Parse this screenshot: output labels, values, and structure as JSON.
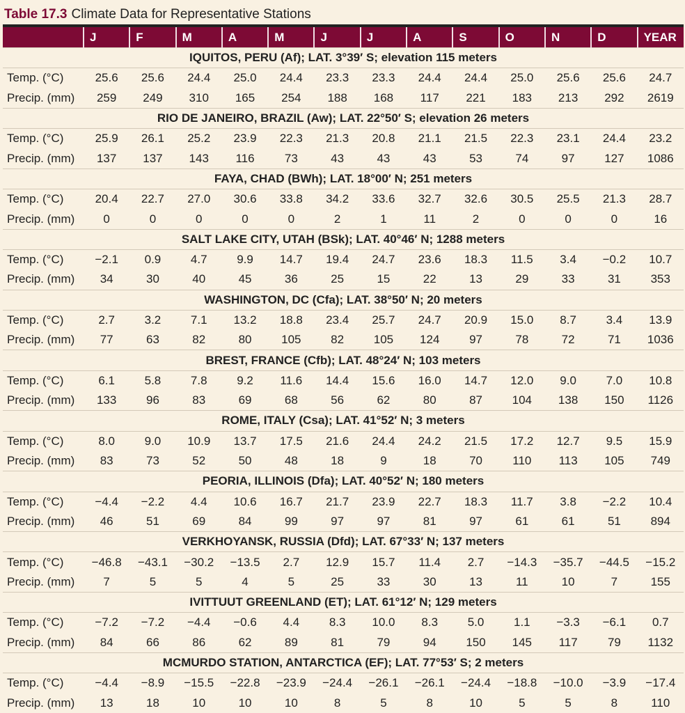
{
  "title": {
    "number": "Table 17.3",
    "text": "Climate Data for Representative Stations"
  },
  "columns": [
    "",
    "J",
    "F",
    "M",
    "A",
    "M",
    "J",
    "J",
    "A",
    "S",
    "O",
    "N",
    "D",
    "YEAR"
  ],
  "row_labels": {
    "temp": "Temp. (°C)",
    "precip": "Precip. (mm)"
  },
  "stations": [
    {
      "name": "IQUITOS, PERU (Af); LAT. 3°39′ S; elevation 115 meters",
      "temp": [
        "25.6",
        "25.6",
        "24.4",
        "25.0",
        "24.4",
        "23.3",
        "23.3",
        "24.4",
        "24.4",
        "25.0",
        "25.6",
        "25.6",
        "24.7"
      ],
      "precip": [
        "259",
        "249",
        "310",
        "165",
        "254",
        "188",
        "168",
        "117",
        "221",
        "183",
        "213",
        "292",
        "2619"
      ]
    },
    {
      "name": "RIO DE JANEIRO, BRAZIL (Aw); LAT. 22°50′ S; elevation 26 meters",
      "temp": [
        "25.9",
        "26.1",
        "25.2",
        "23.9",
        "22.3",
        "21.3",
        "20.8",
        "21.1",
        "21.5",
        "22.3",
        "23.1",
        "24.4",
        "23.2"
      ],
      "precip": [
        "137",
        "137",
        "143",
        "116",
        "73",
        "43",
        "43",
        "43",
        "53",
        "74",
        "97",
        "127",
        "1086"
      ]
    },
    {
      "name": "FAYA, CHAD (BWh); LAT. 18°00′ N; 251 meters",
      "temp": [
        "20.4",
        "22.7",
        "27.0",
        "30.6",
        "33.8",
        "34.2",
        "33.6",
        "32.7",
        "32.6",
        "30.5",
        "25.5",
        "21.3",
        "28.7"
      ],
      "precip": [
        "0",
        "0",
        "0",
        "0",
        "0",
        "2",
        "1",
        "11",
        "2",
        "0",
        "0",
        "0",
        "16"
      ]
    },
    {
      "name": "SALT LAKE CITY, UTAH (BSk); LAT. 40°46′ N; 1288 meters",
      "temp": [
        "−2.1",
        "0.9",
        "4.7",
        "9.9",
        "14.7",
        "19.4",
        "24.7",
        "23.6",
        "18.3",
        "11.5",
        "3.4",
        "−0.2",
        "10.7"
      ],
      "precip": [
        "34",
        "30",
        "40",
        "45",
        "36",
        "25",
        "15",
        "22",
        "13",
        "29",
        "33",
        "31",
        "353"
      ]
    },
    {
      "name": "WASHINGTON, DC (Cfa); LAT. 38°50′ N; 20 meters",
      "temp": [
        "2.7",
        "3.2",
        "7.1",
        "13.2",
        "18.8",
        "23.4",
        "25.7",
        "24.7",
        "20.9",
        "15.0",
        "8.7",
        "3.4",
        "13.9"
      ],
      "precip": [
        "77",
        "63",
        "82",
        "80",
        "105",
        "82",
        "105",
        "124",
        "97",
        "78",
        "72",
        "71",
        "1036"
      ]
    },
    {
      "name": "BREST, FRANCE (Cfb); LAT. 48°24′ N; 103 meters",
      "temp": [
        "6.1",
        "5.8",
        "7.8",
        "9.2",
        "11.6",
        "14.4",
        "15.6",
        "16.0",
        "14.7",
        "12.0",
        "9.0",
        "7.0",
        "10.8"
      ],
      "precip": [
        "133",
        "96",
        "83",
        "69",
        "68",
        "56",
        "62",
        "80",
        "87",
        "104",
        "138",
        "150",
        "1126"
      ]
    },
    {
      "name": "ROME, ITALY (Csa); LAT. 41°52′ N; 3 meters",
      "temp": [
        "8.0",
        "9.0",
        "10.9",
        "13.7",
        "17.5",
        "21.6",
        "24.4",
        "24.2",
        "21.5",
        "17.2",
        "12.7",
        "9.5",
        "15.9"
      ],
      "precip": [
        "83",
        "73",
        "52",
        "50",
        "48",
        "18",
        "9",
        "18",
        "70",
        "110",
        "113",
        "105",
        "749"
      ]
    },
    {
      "name": "PEORIA, ILLINOIS (Dfa); LAT. 40°52′ N; 180 meters",
      "temp": [
        "−4.4",
        "−2.2",
        "4.4",
        "10.6",
        "16.7",
        "21.7",
        "23.9",
        "22.7",
        "18.3",
        "11.7",
        "3.8",
        "−2.2",
        "10.4"
      ],
      "precip": [
        "46",
        "51",
        "69",
        "84",
        "99",
        "97",
        "97",
        "81",
        "97",
        "61",
        "61",
        "51",
        "894"
      ]
    },
    {
      "name": "VERKHOYANSK, RUSSIA (Dfd); LAT. 67°33′ N; 137 meters",
      "temp": [
        "−46.8",
        "−43.1",
        "−30.2",
        "−13.5",
        "2.7",
        "12.9",
        "15.7",
        "11.4",
        "2.7",
        "−14.3",
        "−35.7",
        "−44.5",
        "−15.2"
      ],
      "precip": [
        "7",
        "5",
        "5",
        "4",
        "5",
        "25",
        "33",
        "30",
        "13",
        "11",
        "10",
        "7",
        "155"
      ]
    },
    {
      "name": "IVITTUUT GREENLAND (ET); LAT. 61°12′ N; 129 meters",
      "temp": [
        "−7.2",
        "−7.2",
        "−4.4",
        "−0.6",
        "4.4",
        "8.3",
        "10.0",
        "8.3",
        "5.0",
        "1.1",
        "−3.3",
        "−6.1",
        "0.7"
      ],
      "precip": [
        "84",
        "66",
        "86",
        "62",
        "89",
        "81",
        "79",
        "94",
        "150",
        "145",
        "117",
        "79",
        "1132"
      ]
    },
    {
      "name": "MCMURDO STATION, ANTARCTICA (EF); LAT. 77°53′ S; 2 meters",
      "temp": [
        "−4.4",
        "−8.9",
        "−15.5",
        "−22.8",
        "−23.9",
        "−24.4",
        "−26.1",
        "−26.1",
        "−24.4",
        "−18.8",
        "−10.0",
        "−3.9",
        "−17.4"
      ],
      "precip": [
        "13",
        "18",
        "10",
        "10",
        "10",
        "8",
        "5",
        "8",
        "10",
        "5",
        "5",
        "8",
        "110"
      ]
    }
  ],
  "colors": {
    "header": "#7d0a35",
    "background": "#f9f1e2"
  }
}
